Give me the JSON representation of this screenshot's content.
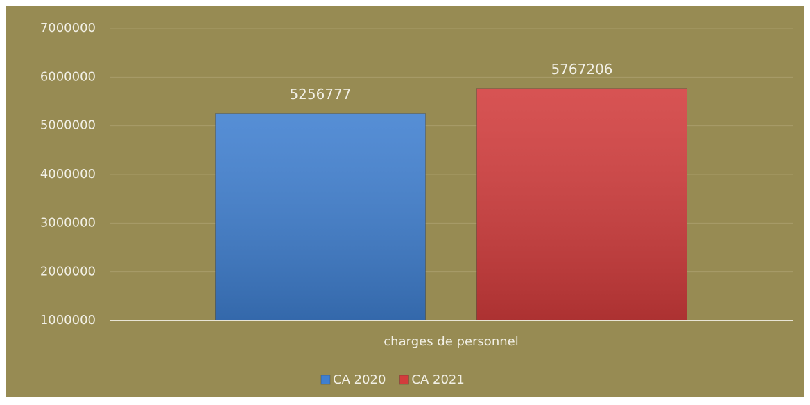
{
  "chart_data": {
    "type": "bar",
    "categories": [
      "charges de personnel"
    ],
    "series": [
      {
        "name": "CA 2020",
        "color": "#3f7fd0",
        "values": [
          5256777
        ]
      },
      {
        "name": "CA 2021",
        "color": "#d23c3c",
        "values": [
          5767206
        ]
      }
    ],
    "ylim": [
      1000000,
      7000000
    ],
    "yticks": [
      1000000,
      2000000,
      3000000,
      4000000,
      5000000,
      6000000,
      7000000
    ],
    "grid": true,
    "legend": "bottom"
  }
}
